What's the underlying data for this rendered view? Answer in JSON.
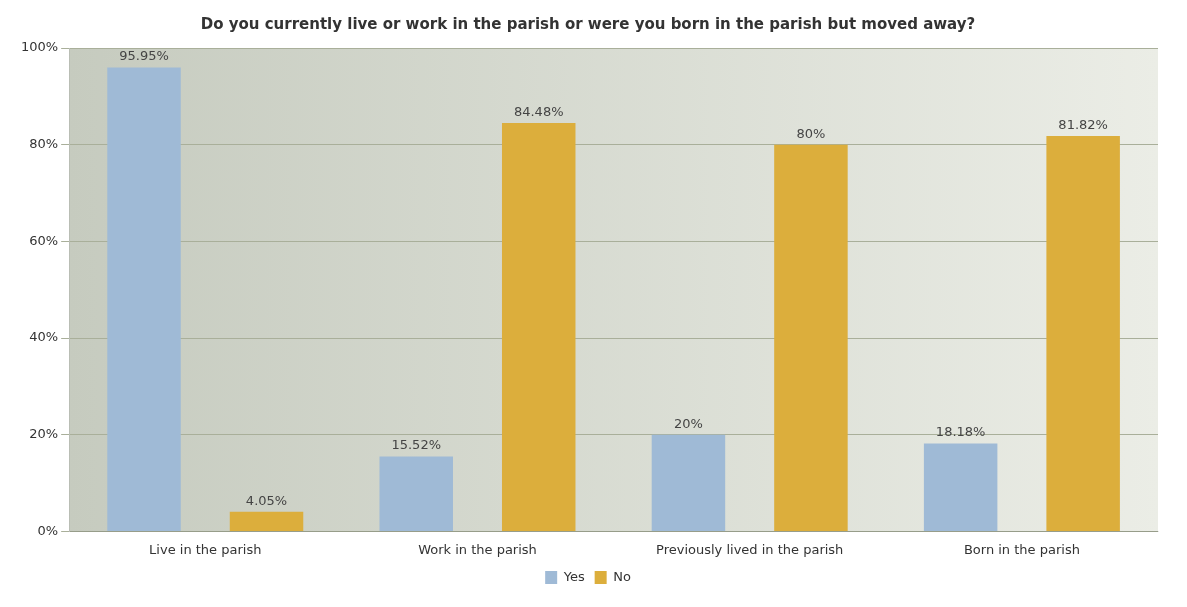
{
  "chart_data": {
    "type": "bar",
    "title": "Do you currently live or work in the parish or were you born in the parish but moved away?",
    "categories": [
      "Live in the parish",
      "Work in the parish",
      "Previously lived in the parish",
      "Born in the parish"
    ],
    "series": [
      {
        "name": "Yes",
        "color": "#9fbad6",
        "values": [
          95.95,
          15.52,
          20,
          18.18
        ],
        "value_labels": [
          "95.95%",
          "15.52%",
          "20%",
          "18.18%"
        ]
      },
      {
        "name": "No",
        "color": "#dcae3c",
        "values": [
          4.05,
          84.48,
          80,
          81.82
        ],
        "value_labels": [
          "4.05%",
          "84.48%",
          "80%",
          "81.82%"
        ]
      }
    ],
    "ylim": [
      0,
      100
    ],
    "yticks": [
      {
        "value": 0,
        "label": "0%"
      },
      {
        "value": 20,
        "label": "20%"
      },
      {
        "value": 40,
        "label": "40%"
      },
      {
        "value": 60,
        "label": "60%"
      },
      {
        "value": 80,
        "label": "80%"
      },
      {
        "value": 100,
        "label": "100%"
      }
    ],
    "grid": "y",
    "legend": "bottom"
  }
}
